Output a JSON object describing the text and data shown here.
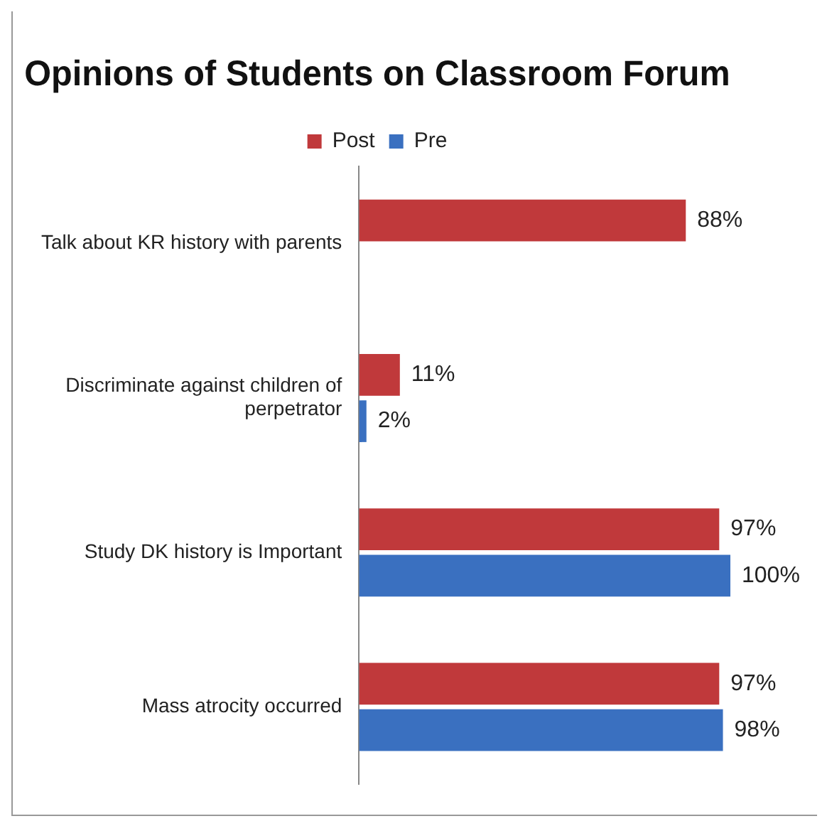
{
  "chart_data": {
    "type": "bar",
    "orientation": "horizontal",
    "title": "Opinions of Students on Classroom Forum",
    "categories": [
      "Talk about KR history with parents",
      "Discriminate against children of perpetrator",
      "Study DK history is Important",
      "Mass atrocity occurred"
    ],
    "series": [
      {
        "name": "Post",
        "color": "#c0393b",
        "values": [
          88,
          11,
          97,
          97
        ],
        "value_labels": [
          "88%",
          "11%",
          "97%",
          "97%"
        ]
      },
      {
        "name": "Pre",
        "color": "#3a70c0",
        "values": [
          null,
          2,
          100,
          98
        ],
        "value_labels": [
          null,
          "2%",
          "100%",
          "98%"
        ]
      }
    ],
    "legend": "top"
  }
}
